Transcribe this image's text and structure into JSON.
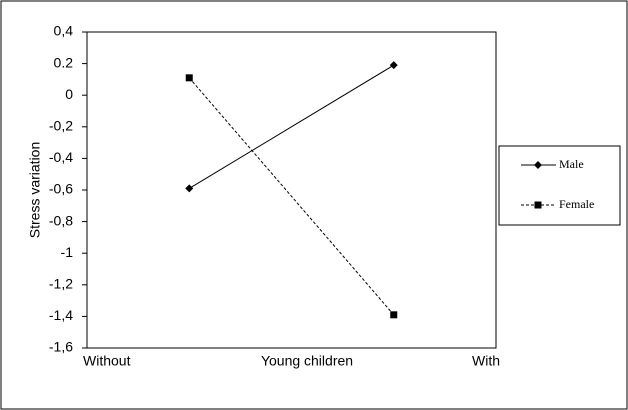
{
  "chart_data": {
    "type": "line",
    "y_label": "Stress variation",
    "x_label": "Young children",
    "x_end_labels": [
      "Without",
      "With"
    ],
    "categories": [
      null,
      null
    ],
    "series": [
      {
        "name": "Male",
        "color": "#000000",
        "linestyle": "solid",
        "marker": "diamond",
        "values": [
          -0.59,
          0.19
        ]
      },
      {
        "name": "Female",
        "color": "#000000",
        "linestyle": "dashed",
        "marker": "square",
        "values": [
          0.11,
          -1.39
        ]
      }
    ],
    "ylim": [
      -1.6,
      0.4
    ],
    "yticks": [
      {
        "value": -1.6,
        "label": "-1,6"
      },
      {
        "value": -1.4,
        "label": "-1,4"
      },
      {
        "value": -1.2,
        "label": "-1,2"
      },
      -1,
      {
        "value": -0.8,
        "label": "-0,8"
      },
      {
        "value": -0.6,
        "label": "-0,6"
      },
      {
        "value": -0.4,
        "label": "-0,4"
      },
      {
        "value": -0.2,
        "label": "-0,2"
      },
      0,
      {
        "value": 0.2,
        "label": "0.2"
      },
      {
        "value": 0.4,
        "label": "0,4"
      }
    ],
    "grid": false,
    "legend": "right"
  }
}
